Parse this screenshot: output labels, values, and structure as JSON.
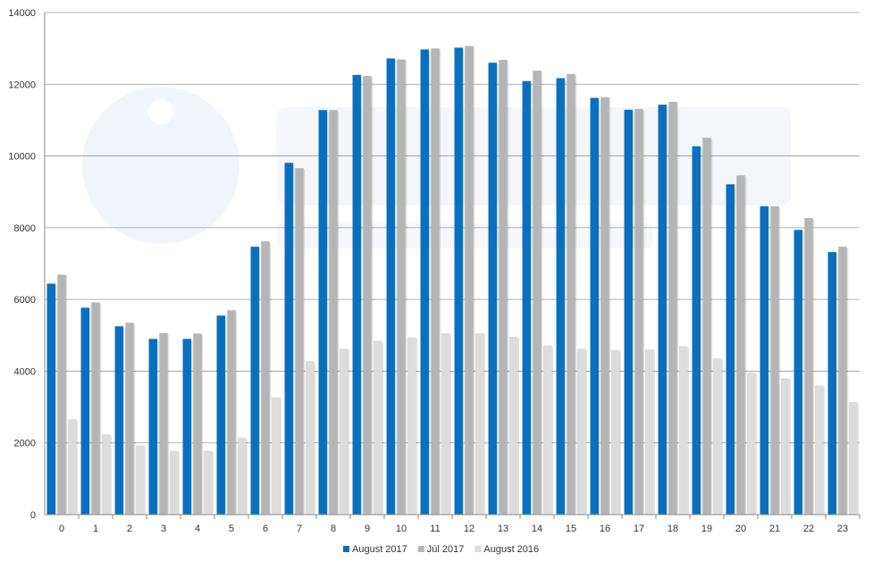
{
  "chart_data": {
    "type": "bar",
    "title": "",
    "xlabel": "",
    "ylabel": "",
    "ylim": [
      0,
      14000
    ],
    "yticks": [
      0,
      2000,
      4000,
      6000,
      8000,
      10000,
      12000,
      14000
    ],
    "grid": true,
    "legend_position": "bottom-center",
    "categories": [
      "0",
      "1",
      "2",
      "3",
      "4",
      "5",
      "6",
      "7",
      "8",
      "9",
      "10",
      "11",
      "12",
      "13",
      "14",
      "15",
      "16",
      "17",
      "18",
      "19",
      "20",
      "21",
      "22",
      "23"
    ],
    "series": [
      {
        "name": "August 2017",
        "color": "#0b6fbf",
        "values": [
          6440,
          5770,
          5250,
          4900,
          4900,
          5550,
          7470,
          9810,
          11280,
          12260,
          12720,
          12970,
          13020,
          12600,
          12090,
          12170,
          11620,
          11290,
          11430,
          10270,
          9210,
          8600,
          7940,
          7320
        ]
      },
      {
        "name": "Júl 2017",
        "color": "#b5b5b5",
        "values": [
          6690,
          5920,
          5350,
          5060,
          5050,
          5700,
          7620,
          9660,
          11280,
          12230,
          12690,
          13000,
          13070,
          12680,
          12380,
          12290,
          11640,
          11310,
          11510,
          10510,
          9460,
          8600,
          8270,
          7470
        ]
      },
      {
        "name": "August 2016",
        "color": "#dcdcdc",
        "values": [
          2660,
          2240,
          1930,
          1780,
          1780,
          2150,
          3270,
          4280,
          4630,
          4850,
          4940,
          5060,
          5060,
          4960,
          4720,
          4630,
          4590,
          4610,
          4700,
          4360,
          3960,
          3800,
          3600,
          3140
        ]
      }
    ]
  }
}
